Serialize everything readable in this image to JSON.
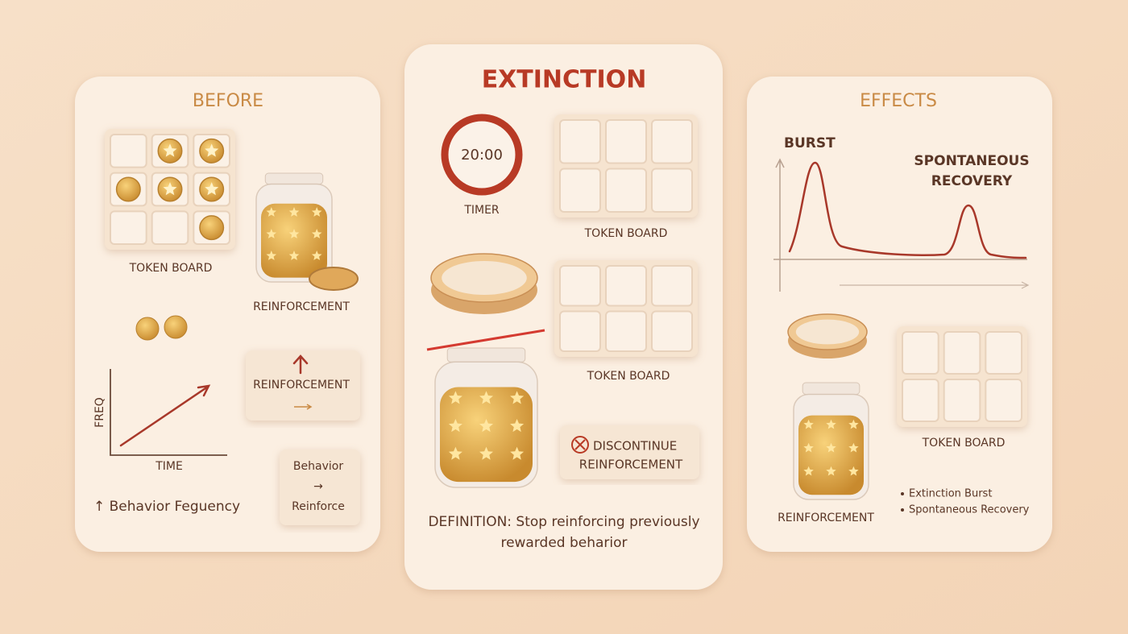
{
  "before": {
    "title": "BEFORE",
    "token_board_label": "TOKEN BOARD",
    "jar_label": "REINFORCEMENT",
    "reinforcement_card": "REINFORCEMENT",
    "graph": {
      "y_label": "FREQ",
      "x_label": "TIME"
    },
    "behavior_card": {
      "top": "Behavior",
      "arrow": "→",
      "bottom": "Reinforce"
    },
    "caption": "↑ Behavior Feguency"
  },
  "extinction": {
    "title": "EXTINCTION",
    "timer": {
      "display": "20:00",
      "label": "TIMER"
    },
    "token_board_labels": [
      "TOKEN BOARD",
      "TOKEN BOARD"
    ],
    "discontinue": [
      "DISCONTINUE",
      "REINFORCEMENT"
    ],
    "definition": [
      "DEFINITION: Stop reinforcing previously",
      "rewarded beharior"
    ]
  },
  "effects": {
    "title": "EFFECTS",
    "graph": {
      "burst": "BURST",
      "recovery": [
        "SPONTANEOUS",
        "RECOVERY"
      ]
    },
    "token_board_label": "TOKEN BOARD",
    "jar_label": "REINFORCEMENT",
    "bullets": [
      "Extinction Burst",
      "Spontaneous Recovery"
    ]
  }
}
